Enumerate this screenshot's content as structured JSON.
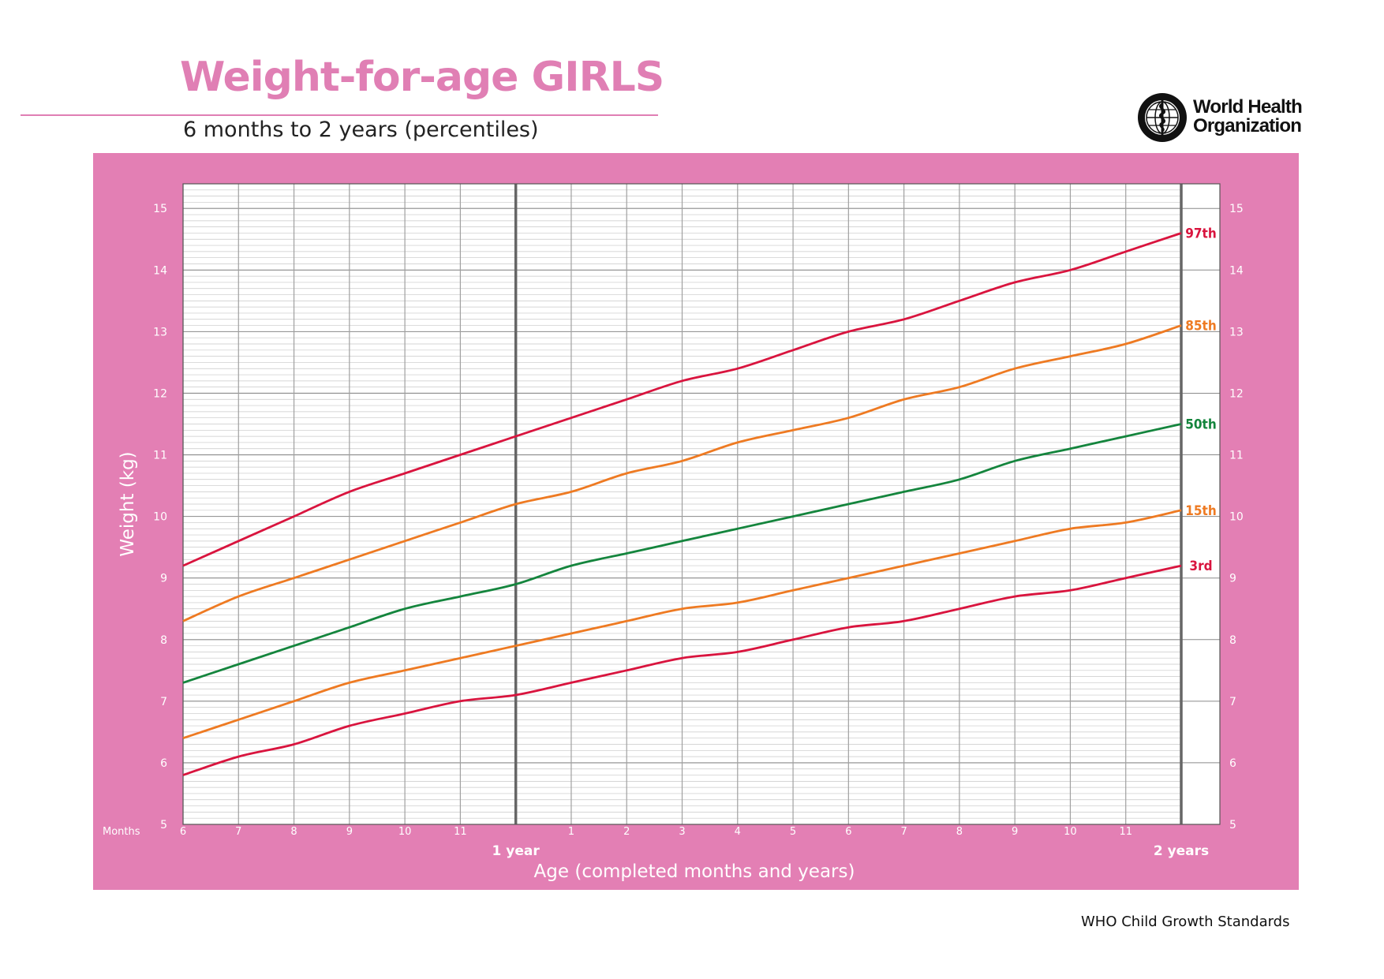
{
  "header": {
    "title": "Weight-for-age GIRLS",
    "subtitle": "6 months to 2 years (percentiles)"
  },
  "logo": {
    "line1": "World Health",
    "line2": "Organization",
    "icon": "who-emblem-icon"
  },
  "footer": {
    "text": "WHO Child Growth Standards"
  },
  "colors": {
    "panel": "#e37fb4",
    "title": "#e07fb4",
    "red": "#d9143e",
    "orange": "#ee7a22",
    "green": "#14853d"
  },
  "chart_data": {
    "type": "line",
    "title": "Weight-for-age GIRLS",
    "subtitle": "6 months to 2 years (percentiles)",
    "xlabel": "Age (completed months and years)",
    "ylabel": "Weight (kg)",
    "x_unit_label": "Months",
    "x_tick_labels": [
      "6",
      "7",
      "8",
      "9",
      "10",
      "11",
      "1 year",
      "1",
      "2",
      "3",
      "4",
      "5",
      "6",
      "7",
      "8",
      "9",
      "10",
      "11",
      "2 years"
    ],
    "x_ticks_months": [
      6,
      7,
      8,
      9,
      10,
      11,
      12,
      13,
      14,
      15,
      16,
      17,
      18,
      19,
      20,
      21,
      22,
      23,
      24
    ],
    "xlim": [
      6,
      24
    ],
    "y_tick_labels": [
      "5",
      "6",
      "7",
      "8",
      "9",
      "10",
      "11",
      "12",
      "13",
      "14",
      "15"
    ],
    "ylim": [
      5,
      15.4
    ],
    "grid": true,
    "minor_grid_y_step": 0.1,
    "x": [
      6,
      7,
      8,
      9,
      10,
      11,
      12,
      13,
      14,
      15,
      16,
      17,
      18,
      19,
      20,
      21,
      22,
      23,
      24
    ],
    "series": [
      {
        "name": "97th",
        "color": "red",
        "values": [
          9.2,
          9.6,
          10.0,
          10.4,
          10.7,
          11.0,
          11.3,
          11.6,
          11.9,
          12.2,
          12.4,
          12.7,
          13.0,
          13.2,
          13.5,
          13.8,
          14.0,
          14.3,
          14.6
        ]
      },
      {
        "name": "85th",
        "color": "orange",
        "values": [
          8.3,
          8.7,
          9.0,
          9.3,
          9.6,
          9.9,
          10.2,
          10.4,
          10.7,
          10.9,
          11.2,
          11.4,
          11.6,
          11.9,
          12.1,
          12.4,
          12.6,
          12.8,
          13.1
        ]
      },
      {
        "name": "50th",
        "color": "green",
        "values": [
          7.3,
          7.6,
          7.9,
          8.2,
          8.5,
          8.7,
          8.9,
          9.2,
          9.4,
          9.6,
          9.8,
          10.0,
          10.2,
          10.4,
          10.6,
          10.9,
          11.1,
          11.3,
          11.5
        ]
      },
      {
        "name": "15th",
        "color": "orange",
        "values": [
          6.4,
          6.7,
          7.0,
          7.3,
          7.5,
          7.7,
          7.9,
          8.1,
          8.3,
          8.5,
          8.6,
          8.8,
          9.0,
          9.2,
          9.4,
          9.6,
          9.8,
          9.9,
          10.1
        ]
      },
      {
        "name": "3rd",
        "color": "red",
        "values": [
          5.8,
          6.1,
          6.3,
          6.6,
          6.8,
          7.0,
          7.1,
          7.3,
          7.5,
          7.7,
          7.8,
          8.0,
          8.2,
          8.3,
          8.5,
          8.7,
          8.8,
          9.0,
          9.2
        ]
      }
    ]
  }
}
